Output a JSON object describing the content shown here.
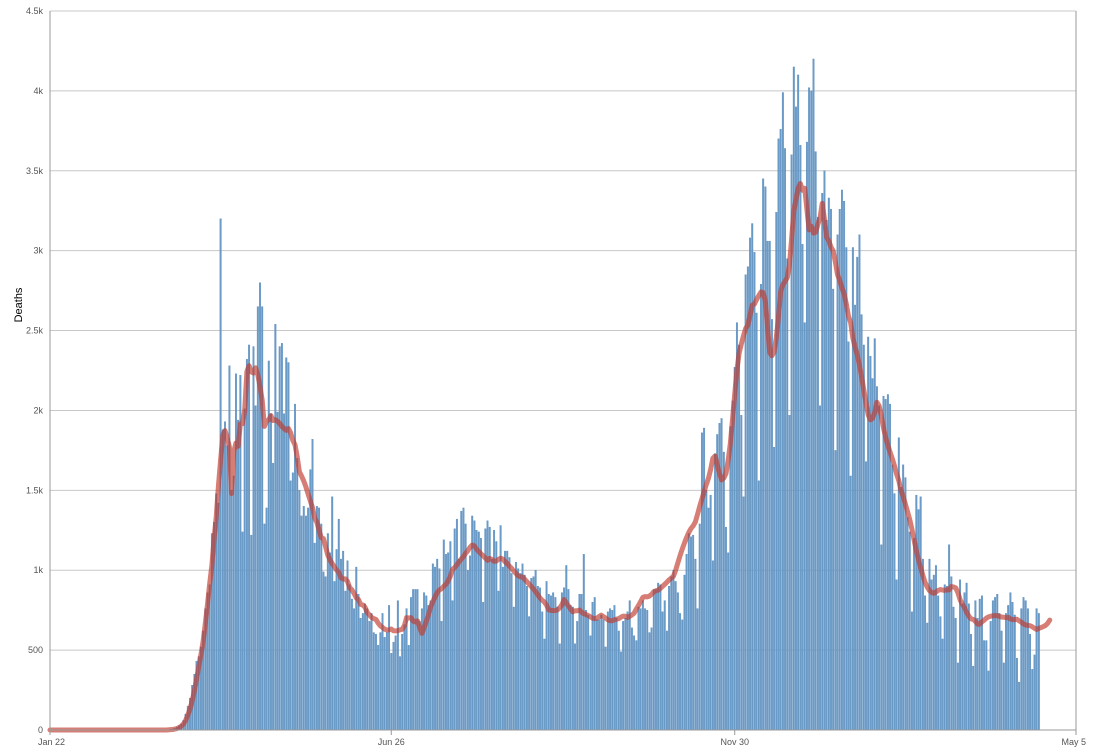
{
  "chart_data": {
    "type": "bar",
    "ylabel": "Deaths",
    "xlabel": "",
    "title": "",
    "ylim": [
      0,
      4500
    ],
    "y_ticks": [
      {
        "value": 0,
        "label": "0"
      },
      {
        "value": 500,
        "label": "500"
      },
      {
        "value": 1000,
        "label": "1k"
      },
      {
        "value": 1500,
        "label": "1.5k"
      },
      {
        "value": 2000,
        "label": "2k"
      },
      {
        "value": 2500,
        "label": "2.5k"
      },
      {
        "value": 3000,
        "label": "3k"
      },
      {
        "value": 3500,
        "label": "3.5k"
      },
      {
        "value": 4000,
        "label": "4k"
      },
      {
        "value": 4500,
        "label": "4.5k"
      }
    ],
    "x_ticks": [
      {
        "day": 0,
        "label": "Jan 22"
      },
      {
        "day": 156,
        "label": "Jun 26"
      },
      {
        "day": 313,
        "label": "Nov 30"
      },
      {
        "day": 469,
        "label": "May 5"
      }
    ],
    "grid": true,
    "legend": "none",
    "colors": {
      "bars": "#6b9cc8",
      "bar_stroke": "#4f84b8",
      "line": "#c0392b",
      "grid": "#c8c8c8",
      "axis": "#999999"
    },
    "series": [
      {
        "kind": "bar",
        "values": [
          0,
          0,
          0,
          0,
          0,
          0,
          0,
          0,
          0,
          0,
          0,
          0,
          0,
          0,
          0,
          0,
          0,
          0,
          0,
          0,
          0,
          0,
          0,
          0,
          0,
          0,
          0,
          0,
          0,
          0,
          0,
          0,
          0,
          0,
          0,
          0,
          0,
          0,
          0,
          0,
          0,
          0,
          0,
          0,
          0,
          0,
          0,
          0,
          0,
          0,
          0,
          0,
          1,
          1,
          2,
          4,
          6,
          12,
          18,
          28,
          38,
          60,
          100,
          150,
          200,
          280,
          350,
          430,
          460,
          520,
          620,
          760,
          860,
          910,
          1230,
          1300,
          1480,
          1420,
          3200,
          1880,
          1930,
          1780,
          2280,
          1500,
          1590,
          2230,
          1940,
          2220,
          1240,
          2010,
          2320,
          2410,
          1220,
          2400,
          2030,
          2650,
          2800,
          2650,
          1290,
          1390,
          2310,
          1980,
          1670,
          2540,
          1990,
          2400,
          2420,
          1980,
          2330,
          2300,
          1560,
          1610,
          2040,
          1700,
          1500,
          1340,
          1400,
          1340,
          1390,
          1630,
          1820,
          1170,
          1400,
          1390,
          1290,
          990,
          960,
          1230,
          1110,
          1460,
          930,
          1130,
          1320,
          1070,
          1120,
          870,
          1060,
          910,
          820,
          760,
          1020,
          850,
          700,
          730,
          790,
          760,
          680,
          730,
          610,
          600,
          530,
          610,
          730,
          580,
          610,
          780,
          480,
          550,
          590,
          810,
          460,
          600,
          660,
          760,
          530,
          830,
          880,
          880,
          880,
          680,
          760,
          860,
          840,
          780,
          810,
          1040,
          1020,
          1070,
          1010,
          680,
          1190,
          1100,
          1110,
          1180,
          810,
          1260,
          1320,
          1070,
          1370,
          1390,
          1290,
          1000,
          1090,
          1340,
          1310,
          1250,
          1240,
          1200,
          800,
          1260,
          1310,
          1270,
          1070,
          1250,
          1180,
          870,
          1280,
          1020,
          1120,
          1120,
          1080,
          980,
          770,
          1050,
          1010,
          980,
          1040,
          970,
          900,
          710,
          950,
          960,
          1000,
          900,
          890,
          740,
          570,
          930,
          850,
          840,
          860,
          830,
          770,
          540,
          860,
          890,
          1030,
          880,
          780,
          770,
          540,
          680,
          850,
          850,
          1100,
          750,
          720,
          590,
          800,
          830,
          690,
          690,
          720,
          690,
          520,
          740,
          760,
          750,
          780,
          700,
          620,
          490,
          680,
          700,
          740,
          810,
          640,
          590,
          560,
          770,
          760,
          810,
          760,
          750,
          610,
          640,
          880,
          880,
          920,
          910,
          740,
          810,
          620,
          900,
          960,
          1000,
          930,
          860,
          730,
          690,
          970,
          1100,
          1230,
          1210,
          1220,
          1070,
          760,
          1290,
          1860,
          1890,
          1500,
          1390,
          1470,
          1060,
          1730,
          1850,
          1920,
          1950,
          1740,
          1270,
          1110,
          1900,
          2060,
          2270,
          2550,
          2410,
          1970,
          1460,
          2850,
          2900,
          3080,
          3170,
          2990,
          2610,
          1560,
          2790,
          3450,
          3400,
          3060,
          3060,
          2570,
          1770,
          3240,
          3700,
          3760,
          3990,
          3640,
          2950,
          1970,
          3600,
          4150,
          3900,
          4100,
          3660,
          3040,
          2550,
          3680,
          4020,
          4000,
          4200,
          3620,
          3210,
          2030,
          3360,
          3500,
          3190,
          3330,
          3260,
          2760,
          1750,
          3100,
          3260,
          3380,
          3310,
          3020,
          2430,
          1590,
          3020,
          2660,
          2960,
          3100,
          2600,
          2410,
          1680,
          2460,
          2340,
          2200,
          2450,
          2150,
          2030,
          1160,
          2090,
          2070,
          2100,
          2040,
          1660,
          1480,
          940,
          1830,
          1520,
          1660,
          1580,
          1330,
          1240,
          740,
          1200,
          1470,
          1380,
          1460,
          1070,
          840,
          670,
          1070,
          940,
          970,
          1030,
          840,
          710,
          570,
          910,
          900,
          1160,
          960,
          770,
          700,
          420,
          940,
          790,
          860,
          920,
          790,
          600,
          400,
          810,
          700,
          820,
          840,
          560,
          560,
          370,
          680,
          810,
          830,
          850,
          730,
          620,
          420,
          730,
          780,
          860,
          800,
          720,
          450,
          300,
          760,
          830,
          810,
          760,
          600,
          380,
          470,
          760,
          730
        ]
      },
      {
        "kind": "line",
        "name": "",
        "values": [
          0,
          0,
          0,
          0,
          0,
          0,
          0,
          0,
          0,
          0,
          0,
          0,
          0,
          0,
          0,
          0,
          0,
          0,
          0,
          0,
          0,
          0,
          0,
          0,
          0,
          0,
          0,
          0,
          0,
          0,
          0,
          0,
          0,
          0,
          0,
          0,
          0,
          0,
          0,
          0,
          0,
          0,
          0,
          0,
          0,
          0,
          0,
          0,
          0,
          0,
          0,
          0,
          0,
          0,
          1,
          2,
          3,
          6,
          9,
          15,
          24,
          38,
          60,
          94,
          132,
          184,
          245,
          319,
          397,
          472,
          556,
          667,
          788,
          917,
          1032,
          1198,
          1338,
          1530,
          1692,
          1845,
          1874,
          1827,
          1772,
          1480,
          1743,
          1796,
          1776,
          1916,
          1917,
          2000,
          2243,
          2280,
          2241,
          2234,
          2267,
          2223,
          2149,
          2064,
          1900,
          1935,
          1940,
          1968,
          1937,
          1942,
          1932,
          1919,
          1900,
          1887,
          1876,
          1887,
          1860,
          1812,
          1785,
          1711,
          1616,
          1589,
          1558,
          1521,
          1476,
          1434,
          1392,
          1327,
          1300,
          1251,
          1203,
          1198,
          1146,
          1094,
          1064,
          1042,
          1021,
          1001,
          986,
          953,
          945,
          946,
          930,
          890,
          878,
          854,
          827,
          817,
          786,
          783,
          768,
          736,
          720,
          705,
          697,
          692,
          669,
          652,
          642,
          631,
          626,
          627,
          632,
          621,
          620,
          622,
          627,
          630,
          653,
          703,
          701,
          703,
          682,
          676,
          683,
          640,
          605,
          641,
          680,
          720,
          770,
          803,
          833,
          860,
          877,
          884,
          900,
          912,
          934,
          962,
          1005,
          1017,
          1035,
          1053,
          1071,
          1085,
          1106,
          1122,
          1144,
          1158,
          1152,
          1131,
          1117,
          1103,
          1090,
          1076,
          1062,
          1074,
          1067,
          1056,
          1057,
          1068,
          1075,
          1070,
          1053,
          1042,
          1026,
          1012,
          995,
          980,
          965,
          958,
          958,
          943,
          928,
          913,
          898,
          883,
          866,
          846,
          826,
          812,
          800,
          781,
          751,
          749,
          747,
          748,
          752,
          765,
          783,
          816,
          795,
          776,
          755,
          740,
          746,
          746,
          751,
          738,
          728,
          723,
          717,
          708,
          700,
          697,
          700,
          710,
          719,
          709,
          701,
          690,
          684,
          684,
          690,
          694,
          697,
          706,
          713,
          712,
          704,
          711,
          720,
          731,
          757,
          779,
          804,
          830,
          835,
          833,
          838,
          849,
          865,
          872,
          875,
          886,
          899,
          912,
          925,
          940,
          951,
          963,
          1000,
          1046,
          1091,
          1132,
          1170,
          1205,
          1236,
          1261,
          1278,
          1302,
          1350,
          1400,
          1446,
          1491,
          1536,
          1576,
          1631,
          1701,
          1715,
          1662,
          1604,
          1565,
          1576,
          1605,
          1689,
          1794,
          1945,
          2103,
          2252,
          2358,
          2415,
          2467,
          2513,
          2534,
          2597,
          2660,
          2666,
          2694,
          2719,
          2741,
          2737,
          2684,
          2517,
          2363,
          2342,
          2366,
          2456,
          2584,
          2745,
          2787,
          2808,
          2831,
          2910,
          3073,
          3249,
          3319,
          3393,
          3420,
          3378,
          3391,
          3258,
          3130,
          3153,
          3110,
          3115,
          3165,
          3206,
          3296,
          3199,
          3084,
          3061,
          3023,
          2999,
          2928,
          2850,
          2813,
          2768,
          2730,
          2667,
          2589,
          2549,
          2453,
          2396,
          2348,
          2283,
          2210,
          2129,
          2048,
          1972,
          1941,
          1950,
          1988,
          2051,
          2029,
          1967,
          1891,
          1830,
          1782,
          1740,
          1699,
          1654,
          1602,
          1561,
          1501,
          1462,
          1414,
          1366,
          1317,
          1257,
          1188,
          1121,
          1065,
          1014,
          968,
          924,
          895,
          873,
          861,
          856,
          863,
          874,
          879,
          876,
          874,
          878,
          877,
          898,
          895,
          890,
          860,
          816,
          788,
          766,
          736,
          713,
          696,
          692,
          680,
          663,
          662,
          677,
          687,
          700,
          708,
          712,
          715,
          716,
          716,
          711,
          707,
          706,
          703,
          705,
          695,
          691,
          691,
          693,
          683,
          675,
          664,
          657,
          655,
          653,
          646,
          637,
          629,
          636,
          641,
          647,
          654,
          667,
          688
        ]
      }
    ]
  }
}
